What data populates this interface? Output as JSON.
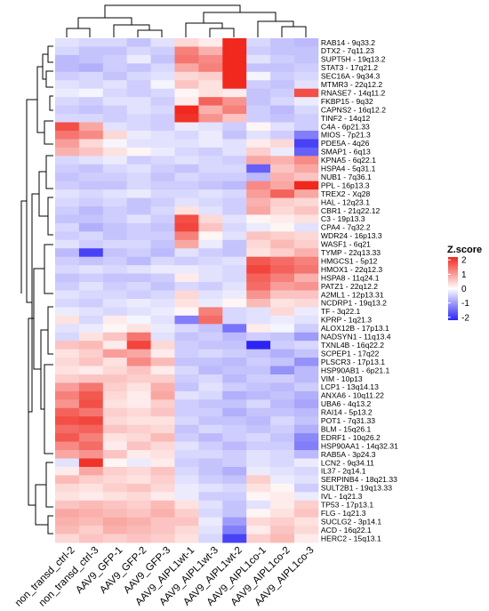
{
  "chart_data": {
    "type": "heatmap",
    "title": "",
    "legend": {
      "title": "Z.score",
      "ticks": [
        2,
        1,
        0,
        -1,
        -2
      ],
      "range": [
        -2.2,
        2.2
      ],
      "colors": {
        "low": "#2b24f5",
        "mid": "#ffffff",
        "high": "#f0281e"
      },
      "placement": "right"
    },
    "columns": [
      "non_transd_ctrl-2",
      "non_transd_ctrl-3",
      "AAV9_GFP-1",
      "AAV9_GFP-2",
      "AAV9_GFP-3",
      "AAV9_AIPL1wt-1",
      "AAV9_AIPL1wt-3",
      "AAV9_AIPL1wt-2",
      "AAV9_AIPL1co-1",
      "AAV9_AIPL1co-2",
      "AAV9_AIPL1co-3"
    ],
    "rows": [
      {
        "gene": "RAB14 - 9q33.2",
        "values": [
          -0.3,
          -0.4,
          -0.4,
          -0.6,
          -0.3,
          0.4,
          0.2,
          2.4,
          -0.4,
          -0.6,
          -0.7
        ]
      },
      {
        "gene": "DTX2 - 7q11.23",
        "values": [
          -0.4,
          -0.6,
          -0.6,
          -0.4,
          -0.5,
          1.3,
          0.8,
          2.4,
          -0.5,
          -0.6,
          -0.6
        ]
      },
      {
        "gene": "SUPT5H - 19q13.2",
        "values": [
          -0.7,
          -0.6,
          -0.5,
          -0.2,
          -0.6,
          1.4,
          1.2,
          2.5,
          -0.3,
          -0.5,
          -0.6
        ]
      },
      {
        "gene": "STAT3 - 17q21.2",
        "values": [
          -0.7,
          -0.8,
          -0.5,
          -0.6,
          -0.4,
          0.9,
          1.3,
          2.6,
          -0.6,
          -0.6,
          -0.5
        ]
      },
      {
        "gene": "SEC16A - 9q34.3",
        "values": [
          -0.5,
          -0.4,
          -0.6,
          -0.4,
          -0.3,
          0.4,
          0.5,
          2.5,
          -0.1,
          -0.5,
          -0.4
        ]
      },
      {
        "gene": "MTMR3 - 22q12.2",
        "values": [
          -0.3,
          -0.4,
          -0.3,
          -0.5,
          -0.1,
          0.6,
          0.3,
          2.5,
          -0.5,
          -0.6,
          -0.3
        ]
      },
      {
        "gene": "RNASE7 - 14q11.2",
        "values": [
          -0.2,
          -0.1,
          -0.4,
          -0.5,
          -0.4,
          0.1,
          0.3,
          0.2,
          -0.6,
          -0.5,
          1.8
        ]
      },
      {
        "gene": "FKBP15 - 9q32",
        "values": [
          -0.4,
          -0.5,
          -0.3,
          -0.3,
          -0.5,
          0.2,
          1.6,
          1.1,
          -0.6,
          -0.4,
          -0.2
        ]
      },
      {
        "gene": "CAPNS2 - 16q12.2",
        "values": [
          -0.5,
          -0.6,
          -0.5,
          -0.3,
          -0.4,
          2.2,
          0.8,
          1.3,
          -0.5,
          -0.7,
          -0.4
        ]
      },
      {
        "gene": "TINF2 - 14q12",
        "values": [
          -0.4,
          -0.4,
          -0.5,
          -0.4,
          -0.5,
          2.1,
          1.1,
          0.6,
          -0.5,
          -0.6,
          -0.5
        ]
      },
      {
        "gene": "C4A - 6p21.33",
        "values": [
          1.8,
          0.9,
          -0.3,
          -0.4,
          -0.5,
          -0.2,
          -0.3,
          -0.5,
          0.1,
          -0.3,
          -0.5
        ]
      },
      {
        "gene": "MIOS - 7p21.3",
        "values": [
          1.4,
          1.2,
          0.4,
          -0.2,
          -0.3,
          -0.4,
          -0.2,
          -0.6,
          -0.3,
          -0.5,
          -1.3
        ]
      },
      {
        "gene": "PDE5A - 4q26",
        "values": [
          1.0,
          0.4,
          -0.1,
          -0.3,
          -0.3,
          -0.3,
          -0.2,
          -0.3,
          0.2,
          0.4,
          -1.9
        ]
      },
      {
        "gene": "SMAP1 - 6q13",
        "values": [
          0.8,
          0.6,
          0.3,
          0.1,
          -0.2,
          -0.4,
          -0.5,
          -0.3,
          0.5,
          -0.2,
          -1.6
        ]
      },
      {
        "gene": "KPNA5 - 6q22.1",
        "values": [
          -0.4,
          -0.3,
          -0.2,
          -0.5,
          -0.4,
          -0.3,
          -0.4,
          -0.5,
          0.9,
          0.8,
          1.2
        ]
      },
      {
        "gene": "HSPA4 - 5q31.1",
        "values": [
          -0.5,
          -0.6,
          -0.4,
          -0.3,
          -0.5,
          -0.6,
          -0.4,
          -0.4,
          -1.6,
          0.6,
          0.9
        ]
      },
      {
        "gene": "NUB1 - 7q36.1",
        "values": [
          -0.6,
          -0.5,
          -0.5,
          -0.4,
          -0.6,
          -0.4,
          -0.5,
          -0.5,
          -0.7,
          0.8,
          0.6
        ]
      },
      {
        "gene": "PPL - 16p13.3",
        "values": [
          -0.5,
          -0.6,
          -0.6,
          -0.4,
          -0.5,
          -0.5,
          -0.6,
          -0.7,
          1.2,
          0.9,
          2.3
        ]
      },
      {
        "gene": "TREX2 - Xq28",
        "values": [
          -0.3,
          -0.4,
          -0.3,
          -0.2,
          -0.4,
          -0.4,
          -0.3,
          -0.4,
          1.0,
          1.6,
          0.9
        ]
      },
      {
        "gene": "HAL - 12q23.1",
        "values": [
          -0.4,
          -0.5,
          -0.4,
          -0.6,
          -0.5,
          -0.3,
          -0.4,
          -0.5,
          0.8,
          0.5,
          0.4
        ]
      },
      {
        "gene": "CBR1 - 21q22.12",
        "values": [
          -0.5,
          -0.7,
          -0.5,
          -0.6,
          -0.4,
          0.3,
          -0.3,
          -0.5,
          0.9,
          0.4,
          0.6
        ]
      },
      {
        "gene": "C3 - 19p13.3",
        "values": [
          -0.6,
          -0.6,
          -0.5,
          -0.3,
          -0.5,
          1.8,
          0.4,
          -0.3,
          0.1,
          0.2,
          0.3
        ]
      },
      {
        "gene": "CPA4 - 7q32.2",
        "values": [
          -0.4,
          -0.8,
          -0.6,
          -0.5,
          -0.6,
          1.9,
          0.6,
          -0.4,
          -0.2,
          0.1,
          -0.3
        ]
      },
      {
        "gene": "WDR24 - 16p13.3",
        "values": [
          -0.5,
          -0.4,
          -0.6,
          -0.5,
          -0.5,
          1.3,
          0.1,
          -0.3,
          0.6,
          0.5,
          0.4
        ]
      },
      {
        "gene": "WASF1 - 6q21",
        "values": [
          -0.3,
          -0.5,
          -0.4,
          -0.4,
          -0.6,
          0.9,
          -0.2,
          -0.6,
          0.4,
          0.7,
          0.5
        ]
      },
      {
        "gene": "TYMP - 22q13.33",
        "values": [
          -0.7,
          -1.9,
          -0.6,
          -0.5,
          -0.7,
          -0.3,
          -0.5,
          -0.6,
          0.3,
          0.5,
          0.8
        ]
      },
      {
        "gene": "HMGCS1 - 5p12",
        "values": [
          -0.5,
          -0.6,
          -0.5,
          -0.7,
          -0.4,
          -0.5,
          -0.4,
          -0.3,
          1.7,
          1.5,
          1.3
        ]
      },
      {
        "gene": "HMOX1 - 22q12.3",
        "values": [
          -0.4,
          -0.3,
          -0.4,
          -0.3,
          -0.2,
          -0.2,
          -0.3,
          -0.4,
          1.9,
          1.6,
          1.4
        ]
      },
      {
        "gene": "HSPA8 - 11q24.1",
        "values": [
          -0.6,
          -0.5,
          -0.6,
          -0.6,
          -0.5,
          0.2,
          -0.3,
          -0.4,
          1.6,
          1.3,
          0.8
        ]
      },
      {
        "gene": "PATZ1 - 22q12.2",
        "values": [
          -0.5,
          -0.3,
          -0.5,
          -0.4,
          -0.6,
          -0.4,
          -0.5,
          -0.3,
          1.5,
          1.0,
          1.1
        ]
      },
      {
        "gene": "A2ML1 - 12p13.31",
        "values": [
          -0.3,
          -0.4,
          -0.4,
          -0.5,
          -0.4,
          0.4,
          -0.3,
          -0.2,
          1.1,
          0.6,
          0.6
        ]
      },
      {
        "gene": "NCDRP1 - 19q13.2",
        "values": [
          -0.4,
          -0.5,
          -0.3,
          -0.2,
          -0.3,
          0.3,
          -0.2,
          0.1,
          0.7,
          0.3,
          0.4
        ]
      },
      {
        "gene": "TF - 3q22.1",
        "values": [
          -0.2,
          -0.3,
          -0.4,
          -0.3,
          -0.2,
          0.1,
          1.3,
          -0.4,
          -0.3,
          0.4,
          -0.2
        ]
      },
      {
        "gene": "KPRP - 1q21.3",
        "values": [
          0.3,
          -0.4,
          0.2,
          -0.1,
          -0.3,
          -1.3,
          1.5,
          -0.4,
          -0.3,
          -0.2,
          -0.3
        ]
      },
      {
        "gene": "ALOX12B - 17p13.1",
        "values": [
          -0.3,
          -0.2,
          0.1,
          0.3,
          -0.2,
          -0.4,
          -0.6,
          -1.4,
          0.2,
          -0.1,
          -0.5
        ]
      },
      {
        "gene": "NADSYN1 - 11q13.4",
        "values": [
          -0.4,
          0.3,
          0.6,
          1.4,
          -0.3,
          -0.6,
          -0.5,
          -0.7,
          -0.5,
          -0.6,
          -1.0
        ]
      },
      {
        "gene": "TXNL4B - 16q22.2",
        "values": [
          0.6,
          0.7,
          0.2,
          1.9,
          0.4,
          -0.5,
          -0.6,
          -0.6,
          -2.2,
          -0.5,
          -0.4
        ]
      },
      {
        "gene": "SCPEP1 - 17q22",
        "values": [
          0.3,
          0.5,
          1.0,
          0.9,
          0.2,
          -0.5,
          -0.4,
          -0.5,
          -0.6,
          -0.8,
          -0.6
        ]
      },
      {
        "gene": "PLSCR3 - 17p13.1",
        "values": [
          0.4,
          0.6,
          0.3,
          1.2,
          0.7,
          -0.6,
          -0.6,
          -0.7,
          -0.5,
          -0.6,
          -1.1
        ]
      },
      {
        "gene": "HSP90AB1 - 6p21.1",
        "values": [
          0.3,
          0.2,
          0.4,
          0.6,
          0.2,
          -0.4,
          -0.7,
          -0.6,
          -0.6,
          -1.1,
          -0.7
        ]
      },
      {
        "gene": "VIM - 10p13",
        "values": [
          0.5,
          0.6,
          0.6,
          0.5,
          0.5,
          -0.5,
          -0.4,
          -0.7,
          -0.5,
          -0.5,
          -0.7
        ]
      },
      {
        "gene": "LCP1 - 13q14.13",
        "values": [
          1.0,
          1.4,
          0.5,
          0.3,
          0.8,
          -0.6,
          -0.3,
          -0.5,
          -0.6,
          -0.7,
          -0.5
        ]
      },
      {
        "gene": "ANXA6 - 10q11.22",
        "values": [
          1.3,
          1.7,
          0.4,
          0.2,
          0.9,
          -0.3,
          -0.4,
          -0.8,
          -0.7,
          -0.6,
          -0.8
        ]
      },
      {
        "gene": "UBA6 - 4q13.2",
        "values": [
          1.1,
          1.8,
          0.3,
          0.2,
          0.5,
          -0.5,
          -0.6,
          -0.6,
          -0.4,
          -0.7,
          -0.9
        ]
      },
      {
        "gene": "RAI14 - 5p13.2",
        "values": [
          1.6,
          1.4,
          0.5,
          0.4,
          0.6,
          -0.5,
          -0.5,
          -0.8,
          -0.6,
          -0.6,
          -0.7
        ]
      },
      {
        "gene": "POT1 - 7q31.33",
        "values": [
          1.8,
          1.9,
          0.4,
          0.3,
          0.3,
          -0.4,
          -0.6,
          -0.6,
          -0.7,
          -0.4,
          -0.6
        ]
      },
      {
        "gene": "BLM - 15q26.1",
        "values": [
          1.5,
          1.6,
          0.6,
          0.5,
          0.4,
          -0.6,
          -0.4,
          -0.5,
          -0.6,
          -0.5,
          -0.8
        ]
      },
      {
        "gene": "EDRF1 - 10q26.2",
        "values": [
          1.7,
          1.3,
          0.3,
          0.4,
          0.7,
          -0.5,
          -0.7,
          -0.5,
          -0.4,
          -0.6,
          -1.2
        ]
      },
      {
        "gene": "HSP90AA1 - 14q32.31",
        "values": [
          1.2,
          1.5,
          0.2,
          0.6,
          0.4,
          -0.3,
          -0.5,
          -0.7,
          -0.5,
          -0.5,
          -1.3
        ]
      },
      {
        "gene": "RAB5A - 3p24.3",
        "values": [
          0.9,
          1.1,
          0.6,
          0.2,
          0.3,
          -0.4,
          -0.4,
          -0.5,
          -0.3,
          -0.4,
          -0.7
        ]
      },
      {
        "gene": "LCN2 - 9q34.11",
        "values": [
          -0.3,
          2.1,
          0.1,
          -0.2,
          0.2,
          -0.5,
          -0.6,
          -0.5,
          -0.3,
          -0.4,
          -0.2
        ]
      },
      {
        "gene": "IL37 - 2q14.1",
        "values": [
          0.2,
          0.9,
          0.5,
          0.4,
          0.6,
          -0.4,
          -0.6,
          -0.8,
          -0.2,
          -0.3,
          -0.4
        ]
      },
      {
        "gene": "SERPINB4 - 18q21.33",
        "values": [
          0.7,
          0.5,
          0.4,
          0.3,
          0.5,
          -0.3,
          -0.5,
          -0.6,
          0.5,
          -0.2,
          -0.3
        ]
      },
      {
        "gene": "SULT2B1 - 19q13.33",
        "values": [
          0.4,
          0.3,
          0.5,
          0.6,
          0.4,
          -0.2,
          -0.3,
          -0.4,
          0.3,
          0.1,
          -0.5
        ]
      },
      {
        "gene": "IVL - 1q21.3",
        "values": [
          0.3,
          0.2,
          0.3,
          0.4,
          0.2,
          -0.2,
          -0.5,
          -0.5,
          0.1,
          0.2,
          -0.2
        ]
      },
      {
        "gene": "TP53 - 17p13.1",
        "values": [
          0.6,
          0.7,
          0.6,
          0.5,
          0.7,
          0.3,
          -0.3,
          -0.6,
          -0.3,
          0.2,
          0.5
        ]
      },
      {
        "gene": "FLG - 1q21.3",
        "values": [
          0.9,
          0.8,
          0.7,
          0.6,
          0.8,
          0.5,
          -0.4,
          -0.6,
          0.1,
          0.3,
          0.6
        ]
      },
      {
        "gene": "SUCLG2 - 3p14.1",
        "values": [
          0.8,
          0.7,
          0.9,
          0.8,
          0.6,
          0.6,
          -0.2,
          -1.0,
          0.4,
          0.5,
          0.3
        ]
      },
      {
        "gene": "ACD - 16q22.1",
        "values": [
          0.7,
          0.5,
          0.8,
          0.7,
          0.6,
          0.4,
          -0.3,
          -1.3,
          0.2,
          0.6,
          0.4
        ]
      },
      {
        "gene": "HERC2 - 15q13.1",
        "values": [
          0.4,
          0.6,
          0.5,
          0.6,
          0.5,
          0.3,
          -0.4,
          -1.9,
          0.5,
          0.7,
          0.2
        ]
      }
    ]
  }
}
